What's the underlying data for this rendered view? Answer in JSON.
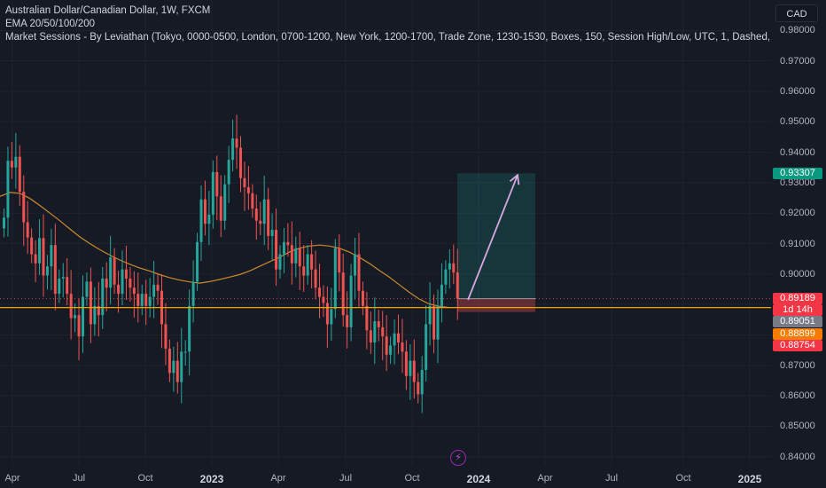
{
  "legend": {
    "title": "Australian Dollar/Canadian Dollar, 1W, FXCM",
    "ema": "EMA 20/50/100/200",
    "sessions": "Market Sessions - By Leviathan (Tokyo, 0000-0500, London, 0700-1200, New York, 1200-1700, Trade Zone, 1230-1530, Boxes, 150, Session High/Low, UTC, 1, Dashed, Das"
  },
  "currency_button": "CAD",
  "bolt_icon": "lightning-icon",
  "colors": {
    "background": "#161a25",
    "grid": "#1f2330",
    "up": "#26a69a",
    "down": "#ef5350",
    "ema": "#c98a2e",
    "horizontal_line": "#f5a300",
    "target_zone": "#1a6e66",
    "arrow": "#d8a6e0"
  },
  "price_tags": [
    {
      "text": "0.93307",
      "bg": "#089981"
    },
    {
      "text": "0.89189",
      "bg": "#f23645"
    },
    {
      "text": "1d 14h",
      "bg": "#f23645"
    },
    {
      "text": "0.89051",
      "bg": "#787b86"
    },
    {
      "text": "0.88899",
      "bg": "#f57c00"
    },
    {
      "text": "0.88754",
      "bg": "#f23645"
    }
  ],
  "chart_data": {
    "type": "candlestick",
    "symbol": "AUDCAD",
    "timeframe": "1W",
    "ylim": [
      0.837,
      0.99
    ],
    "yticks": [
      "0.98000",
      "0.97000",
      "0.96000",
      "0.95000",
      "0.94000",
      "0.93000",
      "0.92000",
      "0.91000",
      "0.90000",
      "0.89000",
      "0.88000",
      "0.87000",
      "0.86000",
      "0.85000",
      "0.84000"
    ],
    "xticks": [
      {
        "label": "Apr",
        "bold": false
      },
      {
        "label": "Jul",
        "bold": false
      },
      {
        "label": "Oct",
        "bold": false
      },
      {
        "label": "2023",
        "bold": true
      },
      {
        "label": "Apr",
        "bold": false
      },
      {
        "label": "Jul",
        "bold": false
      },
      {
        "label": "Oct",
        "bold": false
      },
      {
        "label": "2024",
        "bold": true
      },
      {
        "label": "Apr",
        "bold": false
      },
      {
        "label": "Jul",
        "bold": false
      },
      {
        "label": "Oct",
        "bold": false
      },
      {
        "label": "2025",
        "bold": true
      }
    ],
    "candle_closes": [
      0.9185,
      0.9372,
      0.935,
      0.9385,
      0.927,
      0.917,
      0.912,
      0.9065,
      0.9035,
      0.9118,
      0.8995,
      0.9025,
      0.9095,
      0.8935,
      0.8985,
      0.899,
      0.8935,
      0.8855,
      0.8865,
      0.8795,
      0.8925,
      0.8975,
      0.8835,
      0.8895,
      0.8865,
      0.8985,
      0.8955,
      0.9055,
      0.8965,
      0.8935,
      0.9015,
      0.8985,
      0.8955,
      0.8935,
      0.8895,
      0.8935,
      0.8895,
      0.8925,
      0.8965,
      0.8945,
      0.8835,
      0.8755,
      0.8675,
      0.8715,
      0.8645,
      0.8745,
      0.8745,
      0.8895,
      0.8975,
      0.9105,
      0.9245,
      0.9165,
      0.9195,
      0.9335,
      0.9255,
      0.9175,
      0.9295,
      0.9375,
      0.9445,
      0.9415,
      0.9315,
      0.9285,
      0.9265,
      0.9215,
      0.9175,
      0.9165,
      0.9245,
      0.9125,
      0.9145,
      0.9015,
      0.9065,
      0.9105,
      0.9095,
      0.9035,
      0.9085,
      0.9025,
      0.8995,
      0.9065,
      0.9015,
      0.8955,
      0.8925,
      0.8905,
      0.8835,
      0.8885,
      0.9085,
      0.9005,
      0.8865,
      0.8825,
      0.8995,
      0.9065,
      0.8945,
      0.8895,
      0.8815,
      0.8775,
      0.8845,
      0.8825,
      0.8795,
      0.8735,
      0.8765,
      0.8805,
      0.8775,
      0.8745,
      0.8665,
      0.8715,
      0.8645,
      0.8605,
      0.8685,
      0.8835,
      0.8895,
      0.8785,
      0.8895,
      0.8965,
      0.9015,
      0.9035,
      0.9005,
      0.8919
    ],
    "ema": [
      0.9255,
      0.9268,
      0.9265,
      0.9248,
      0.9225,
      0.92,
      0.9175,
      0.9148,
      0.9122,
      0.91,
      0.908,
      0.9062,
      0.9046,
      0.9032,
      0.902,
      0.901,
      0.8998,
      0.8988,
      0.898,
      0.8974,
      0.897,
      0.8975,
      0.8982,
      0.899,
      0.8998,
      0.901,
      0.9025,
      0.904,
      0.9055,
      0.9072,
      0.9085,
      0.9092,
      0.9095,
      0.9092,
      0.9085,
      0.9072,
      0.9055,
      0.9035,
      0.9012,
      0.899,
      0.8965,
      0.894,
      0.8918,
      0.8902,
      0.8894,
      0.889
    ],
    "target_zone": {
      "price_top": 0.93307,
      "price_entry": 0.89189,
      "price_stop": 0.8875
    },
    "arrow": {
      "from_price": 0.8915,
      "to_price": 0.9325
    },
    "horizontal_line": 0.88899
  }
}
